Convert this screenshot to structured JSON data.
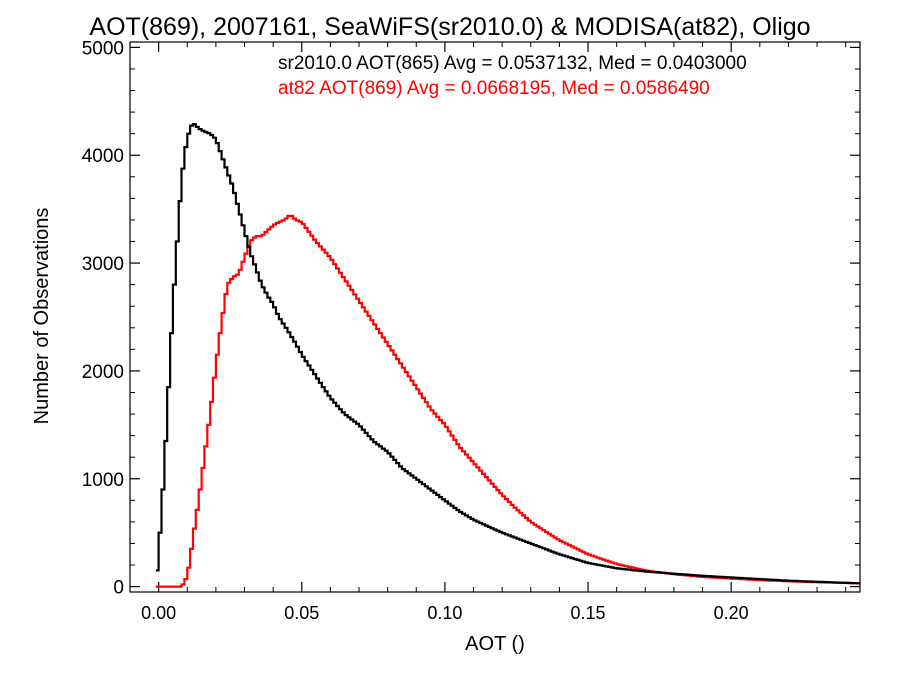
{
  "chart_data": {
    "type": "line",
    "title": "AOT(869), 2007161, SeaWiFS(sr2010.0) & MODISA(at82), Oligo",
    "xlabel": "AOT ()",
    "ylabel": "Number of Observations",
    "xlim": [
      -0.01,
      0.245
    ],
    "ylim": [
      -50,
      5050
    ],
    "xticks": [
      0.0,
      0.05,
      0.1,
      0.15,
      0.2
    ],
    "xtick_labels": [
      "0.00",
      "0.05",
      "0.10",
      "0.15",
      "0.20"
    ],
    "yticks": [
      0,
      1000,
      2000,
      3000,
      4000,
      5000
    ],
    "ytick_labels": [
      "0",
      "1000",
      "2000",
      "3000",
      "4000",
      "5000"
    ],
    "grid": false,
    "series": [
      {
        "name": "sr2010.0 AOT(865)",
        "stat_label": "sr2010.0 AOT(865) Avg = 0.0537132, Med = 0.0403000",
        "color": "#000000",
        "x": [
          -0.001,
          0.0,
          0.001,
          0.002,
          0.003,
          0.004,
          0.005,
          0.006,
          0.007,
          0.008,
          0.009,
          0.01,
          0.011,
          0.012,
          0.014,
          0.016,
          0.018,
          0.02,
          0.022,
          0.024,
          0.026,
          0.028,
          0.03,
          0.032,
          0.034,
          0.036,
          0.038,
          0.04,
          0.042,
          0.045,
          0.048,
          0.05,
          0.055,
          0.06,
          0.065,
          0.07,
          0.075,
          0.08,
          0.085,
          0.09,
          0.095,
          0.1,
          0.105,
          0.11,
          0.115,
          0.12,
          0.13,
          0.14,
          0.15,
          0.16,
          0.17,
          0.18,
          0.19,
          0.2,
          0.21,
          0.22,
          0.23,
          0.24,
          0.245
        ],
        "values": [
          0,
          300,
          700,
          1100,
          1600,
          2100,
          2600,
          3000,
          3400,
          3750,
          4000,
          4150,
          4250,
          4300,
          4250,
          4220,
          4200,
          4150,
          4000,
          3850,
          3700,
          3500,
          3300,
          3100,
          2950,
          2800,
          2700,
          2620,
          2500,
          2380,
          2250,
          2150,
          1950,
          1750,
          1600,
          1500,
          1350,
          1250,
          1100,
          1000,
          900,
          800,
          700,
          620,
          560,
          500,
          400,
          300,
          220,
          170,
          140,
          120,
          100,
          85,
          70,
          55,
          45,
          35,
          30
        ]
      },
      {
        "name": "at82 AOT(869)",
        "stat_label": "at82 AOT(869) Avg = 0.0668195, Med = 0.0586490",
        "color": "#ff0000",
        "x": [
          -0.001,
          0.008,
          0.009,
          0.01,
          0.011,
          0.012,
          0.014,
          0.016,
          0.018,
          0.02,
          0.022,
          0.024,
          0.026,
          0.028,
          0.03,
          0.032,
          0.034,
          0.036,
          0.038,
          0.04,
          0.042,
          0.044,
          0.046,
          0.048,
          0.05,
          0.055,
          0.06,
          0.065,
          0.07,
          0.075,
          0.08,
          0.085,
          0.09,
          0.095,
          0.1,
          0.105,
          0.11,
          0.115,
          0.12,
          0.125,
          0.13,
          0.14,
          0.15,
          0.16,
          0.17,
          0.18,
          0.19,
          0.2,
          0.21,
          0.22,
          0.23,
          0.24,
          0.245
        ],
        "values": [
          0,
          0,
          40,
          100,
          250,
          450,
          800,
          1200,
          1600,
          2050,
          2450,
          2800,
          2870,
          2900,
          3050,
          3200,
          3250,
          3250,
          3300,
          3350,
          3380,
          3400,
          3450,
          3400,
          3380,
          3200,
          3050,
          2850,
          2650,
          2450,
          2250,
          2050,
          1850,
          1650,
          1500,
          1300,
          1150,
          1000,
          850,
          720,
          600,
          430,
          300,
          210,
          150,
          115,
          90,
          75,
          60,
          50,
          40,
          35,
          30
        ]
      }
    ]
  }
}
